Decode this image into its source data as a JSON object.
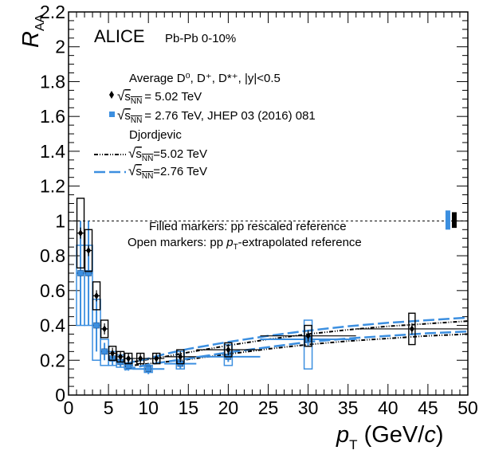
{
  "chart_data": {
    "type": "scatter",
    "experiment": "ALICE",
    "system": "Pb-Pb 0-10%",
    "xlim": [
      0,
      50
    ],
    "ylim": [
      0,
      2.2
    ],
    "x_ticks": [
      "0",
      "5",
      "10",
      "15",
      "20",
      "25",
      "30",
      "35",
      "40",
      "45",
      "50"
    ],
    "y_ticks": [
      "0",
      "0.2",
      "0.4",
      "0.6",
      "0.8",
      "1",
      "1.2",
      "1.4",
      "1.6",
      "1.8",
      "2",
      "2.2"
    ],
    "xlabel": {
      "main": "p",
      "sub": "T",
      "unit": " (GeV/",
      "unit_italic": "c",
      "unit_end": ")"
    },
    "ylabel": {
      "main": "R",
      "sub": "AA"
    },
    "legend": {
      "header": "Average D⁰, D⁺, D*⁺, |y|<0.5",
      "entry_502": "= 5.02 TeV",
      "entry_276": "= 2.76 TeV, JHEP 03 (2016) 081",
      "model_header": "Djordjevic",
      "model_502": "=5.02 TeV",
      "model_276": "=2.76 TeV",
      "sqrt_s": "s",
      "nn": "NN"
    },
    "notes": {
      "filled": "Filled markers: pp rescaled reference",
      "open_a": "Open markers: pp ",
      "open_p": "p",
      "open_t": "T",
      "open_b": "-extrapolated reference"
    },
    "colors": {
      "data502": "#000000",
      "data276": "#3c8fe0"
    },
    "series": [
      {
        "name": "√sNN = 5.02 TeV",
        "x": [
          1.5,
          2.5,
          3.5,
          4.5,
          5.5,
          6.5,
          7.5,
          9,
          11,
          14,
          20,
          30,
          43
        ],
        "xerr": [
          0.5,
          0.5,
          0.5,
          0.5,
          0.5,
          0.5,
          0.5,
          1,
          1,
          2,
          4,
          6,
          7
        ],
        "y": [
          0.93,
          0.83,
          0.57,
          0.38,
          0.24,
          0.22,
          0.21,
          0.21,
          0.21,
          0.22,
          0.26,
          0.34,
          0.38
        ],
        "sys": [
          0.2,
          0.12,
          0.08,
          0.05,
          0.04,
          0.03,
          0.03,
          0.03,
          0.03,
          0.04,
          0.04,
          0.06,
          0.09
        ],
        "boxes_filled": [
          {
            "x": 1.5,
            "y": 0.93,
            "sys": 0.2
          },
          {
            "x": 2.5,
            "y": 0.83,
            "sys": 0.12
          },
          {
            "x": 3.5,
            "y": 0.57,
            "sys": 0.08
          },
          {
            "x": 4.5,
            "y": 0.38,
            "sys": 0.05
          },
          {
            "x": 5.5,
            "y": 0.24,
            "sys": 0.04
          },
          {
            "x": 6.5,
            "y": 0.22,
            "sys": 0.03
          },
          {
            "x": 7.5,
            "y": 0.21,
            "sys": 0.03
          },
          {
            "x": 9,
            "y": 0.21,
            "sys": 0.03
          },
          {
            "x": 11,
            "y": 0.21,
            "sys": 0.03
          },
          {
            "x": 14,
            "y": 0.22,
            "sys": 0.04
          },
          {
            "x": 20,
            "y": 0.26,
            "sys": 0.04
          },
          {
            "x": 30,
            "y": 0.34,
            "sys": 0.06
          }
        ],
        "boxes_open": [
          {
            "x": 43,
            "y": 0.38,
            "sys": 0.09
          }
        ]
      },
      {
        "name": "√sNN = 2.76 TeV",
        "x": [
          1.5,
          2.5,
          3.5,
          4.5,
          5.5,
          6.5,
          7.5,
          10,
          14,
          20,
          30
        ],
        "xerr": [
          0.5,
          0.5,
          0.5,
          0.5,
          0.5,
          0.5,
          0.5,
          2,
          2,
          4,
          6
        ],
        "y": [
          0.7,
          0.7,
          0.4,
          0.25,
          0.21,
          0.19,
          0.17,
          0.15,
          0.18,
          0.22,
          0.32
        ],
        "err_lo": [
          0.3,
          0.3,
          0.15,
          0.05,
          0.04,
          0.03,
          0.03,
          0.03,
          0.03,
          0.03,
          0.04
        ],
        "err_hi": [
          0.3,
          0.3,
          0.15,
          0.05,
          0.04,
          0.03,
          0.03,
          0.03,
          0.03,
          0.03,
          0.04
        ],
        "boxes": [
          {
            "x": 1.5,
            "lo": 0.4,
            "hi": 0.86
          },
          {
            "x": 2.5,
            "lo": 0.4,
            "hi": 0.86
          },
          {
            "x": 3.5,
            "lo": 0.2,
            "hi": 0.55
          },
          {
            "x": 4.5,
            "lo": 0.17,
            "hi": 0.32
          },
          {
            "x": 5.5,
            "lo": 0.17,
            "hi": 0.25
          },
          {
            "x": 6.5,
            "lo": 0.16,
            "hi": 0.23
          },
          {
            "x": 7.5,
            "lo": 0.15,
            "hi": 0.21
          },
          {
            "x": 10,
            "lo": 0.13,
            "hi": 0.17
          },
          {
            "x": 14,
            "lo": 0.15,
            "hi": 0.25
          },
          {
            "x": 20,
            "lo": 0.17,
            "hi": 0.29
          },
          {
            "x": 30,
            "lo": 0.15,
            "hi": 0.43
          }
        ]
      }
    ],
    "models": [
      {
        "name": "Djordjevic √sNN=5.02 TeV",
        "style": "dash-dot-dot",
        "color": "#000000",
        "upper": {
          "x": [
            7,
            8,
            10,
            12,
            15,
            20,
            25,
            30,
            35,
            40,
            45,
            50
          ],
          "y": [
            0.18,
            0.19,
            0.205,
            0.22,
            0.245,
            0.285,
            0.32,
            0.35,
            0.375,
            0.395,
            0.41,
            0.425
          ]
        },
        "lower": {
          "x": [
            7,
            8,
            10,
            12,
            15,
            20,
            25,
            30,
            35,
            40,
            45,
            50
          ],
          "y": [
            0.165,
            0.17,
            0.18,
            0.19,
            0.205,
            0.235,
            0.265,
            0.29,
            0.31,
            0.325,
            0.34,
            0.35
          ]
        }
      },
      {
        "name": "Djordjevic √sNN=2.76 TeV",
        "style": "long-dash",
        "color": "#3c8fe0",
        "upper": {
          "x": [
            7,
            8,
            10,
            12,
            15,
            20,
            25,
            30,
            35,
            40,
            45,
            50
          ],
          "y": [
            0.17,
            0.19,
            0.21,
            0.235,
            0.265,
            0.305,
            0.34,
            0.37,
            0.395,
            0.415,
            0.43,
            0.445
          ]
        },
        "lower": {
          "x": [
            7,
            8,
            10,
            12,
            15,
            20,
            25,
            30,
            35,
            40,
            45,
            50
          ],
          "y": [
            0.145,
            0.155,
            0.175,
            0.19,
            0.21,
            0.245,
            0.275,
            0.305,
            0.325,
            0.34,
            0.355,
            0.365
          ]
        }
      }
    ],
    "reference_line_y": 1,
    "norm_boxes": [
      {
        "series": "2.76 TeV",
        "x": 47.5,
        "lo": 0.95,
        "hi": 1.06,
        "color": "#3c8fe0"
      },
      {
        "series": "5.02 TeV",
        "x": 48.3,
        "lo": 0.96,
        "hi": 1.05,
        "color": "#000000"
      }
    ]
  }
}
